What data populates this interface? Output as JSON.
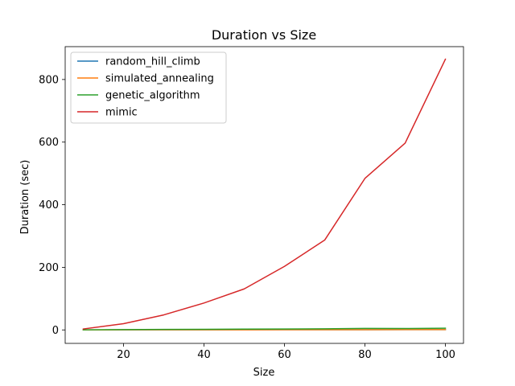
{
  "chart_data": {
    "type": "line",
    "title": "Duration vs Size",
    "xlabel": "Size",
    "ylabel": "Duration (sec)",
    "xlim": [
      5.5,
      104.5
    ],
    "ylim": [
      -43,
      905
    ],
    "xticks": [
      20,
      40,
      60,
      80,
      100
    ],
    "yticks": [
      0,
      200,
      400,
      600,
      800
    ],
    "legend_position": "top-left",
    "grid": false,
    "x": [
      10,
      20,
      30,
      40,
      50,
      60,
      70,
      80,
      90,
      100
    ],
    "series": [
      {
        "name": "random_hill_climb",
        "color": "#1f77b4",
        "values": [
          0.1,
          0.2,
          0.3,
          0.4,
          0.5,
          0.6,
          0.7,
          0.8,
          0.9,
          1.0
        ]
      },
      {
        "name": "simulated_annealing",
        "color": "#ff7f0e",
        "values": [
          0.1,
          0.2,
          0.3,
          0.4,
          0.5,
          0.6,
          0.7,
          0.8,
          0.9,
          1.0
        ]
      },
      {
        "name": "genetic_algorithm",
        "color": "#2ca02c",
        "values": [
          0.5,
          1.0,
          1.5,
          2.0,
          2.5,
          3.0,
          3.5,
          5.0,
          4.5,
          5.5
        ]
      },
      {
        "name": "mimic",
        "color": "#d62728",
        "values": [
          3,
          20,
          48,
          86,
          131,
          203,
          287,
          484,
          597,
          865
        ]
      }
    ]
  }
}
